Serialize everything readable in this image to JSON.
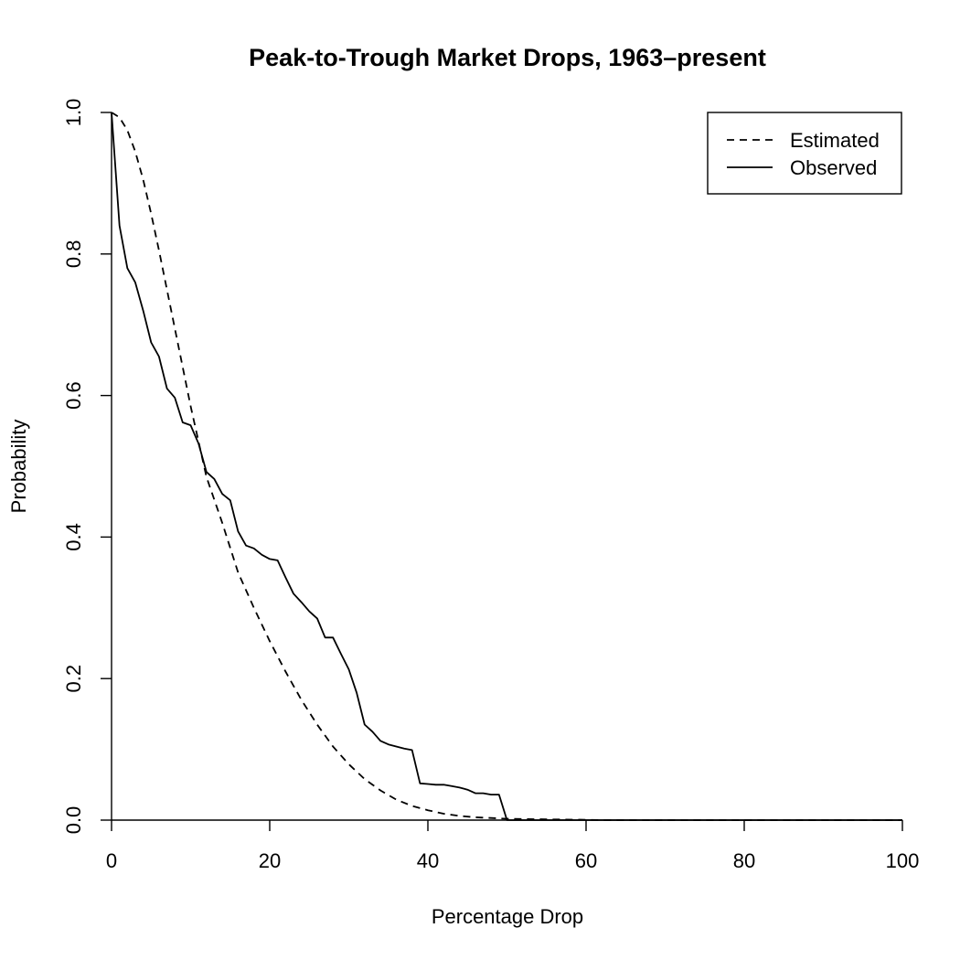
{
  "chart_data": {
    "type": "line",
    "title": "Peak-to-Trough Market Drops, 1963–present",
    "xlabel": "Percentage Drop",
    "ylabel": "Probability",
    "xlim": [
      0,
      100
    ],
    "ylim": [
      0,
      1
    ],
    "x_ticks": [
      0,
      20,
      40,
      60,
      80,
      100
    ],
    "x_tick_labels": [
      "0",
      "20",
      "40",
      "60",
      "80",
      "100"
    ],
    "y_ticks": [
      0,
      0.2,
      0.4,
      0.6,
      0.8,
      1.0
    ],
    "y_tick_labels": [
      "0.0",
      "0.2",
      "0.4",
      "0.6",
      "0.8",
      "1.0"
    ],
    "grid": false,
    "legend_position": "top-right",
    "series": [
      {
        "name": "Estimated",
        "line_style": "dashed",
        "color": "#000000",
        "x": [
          0,
          1,
          2,
          3,
          4,
          5,
          6,
          8,
          10,
          12,
          14,
          16,
          18,
          20,
          22,
          24,
          26,
          28,
          30,
          32,
          34,
          36,
          38,
          40,
          42,
          44,
          46,
          48,
          50,
          55,
          60,
          62,
          70,
          80,
          90,
          100
        ],
        "y": [
          1.0,
          0.993,
          0.975,
          0.945,
          0.905,
          0.857,
          0.805,
          0.695,
          0.585,
          0.485,
          0.42,
          0.35,
          0.3,
          0.253,
          0.21,
          0.17,
          0.135,
          0.104,
          0.079,
          0.058,
          0.042,
          0.029,
          0.02,
          0.014,
          0.009,
          0.006,
          0.004,
          0.003,
          0.002,
          0.001,
          0.0005,
          0.0,
          0.0,
          0.0,
          0.0,
          0.0
        ]
      },
      {
        "name": "Observed",
        "line_style": "solid",
        "color": "#000000",
        "x": [
          0,
          1,
          2,
          3,
          4,
          5,
          6,
          7,
          8,
          9,
          10,
          11,
          12,
          13,
          14,
          15,
          16,
          17,
          18,
          19,
          20,
          21,
          22,
          23,
          24,
          25,
          26,
          27,
          28,
          29,
          30,
          31,
          32,
          33,
          34,
          35,
          36,
          37,
          38,
          39,
          40,
          41,
          42,
          43,
          44,
          45,
          46,
          47,
          48,
          49,
          50,
          60,
          70,
          80,
          90,
          100
        ],
        "y": [
          1.0,
          0.84,
          0.78,
          0.76,
          0.72,
          0.675,
          0.655,
          0.61,
          0.597,
          0.562,
          0.558,
          0.532,
          0.492,
          0.482,
          0.461,
          0.452,
          0.408,
          0.388,
          0.384,
          0.375,
          0.369,
          0.367,
          0.343,
          0.32,
          0.308,
          0.295,
          0.285,
          0.258,
          0.258,
          0.235,
          0.213,
          0.18,
          0.135,
          0.125,
          0.112,
          0.107,
          0.104,
          0.101,
          0.099,
          0.052,
          0.051,
          0.05,
          0.05,
          0.048,
          0.046,
          0.043,
          0.038,
          0.038,
          0.036,
          0.036,
          0.0,
          0.0,
          0.0,
          0.0,
          0.0,
          0.0
        ]
      }
    ]
  }
}
